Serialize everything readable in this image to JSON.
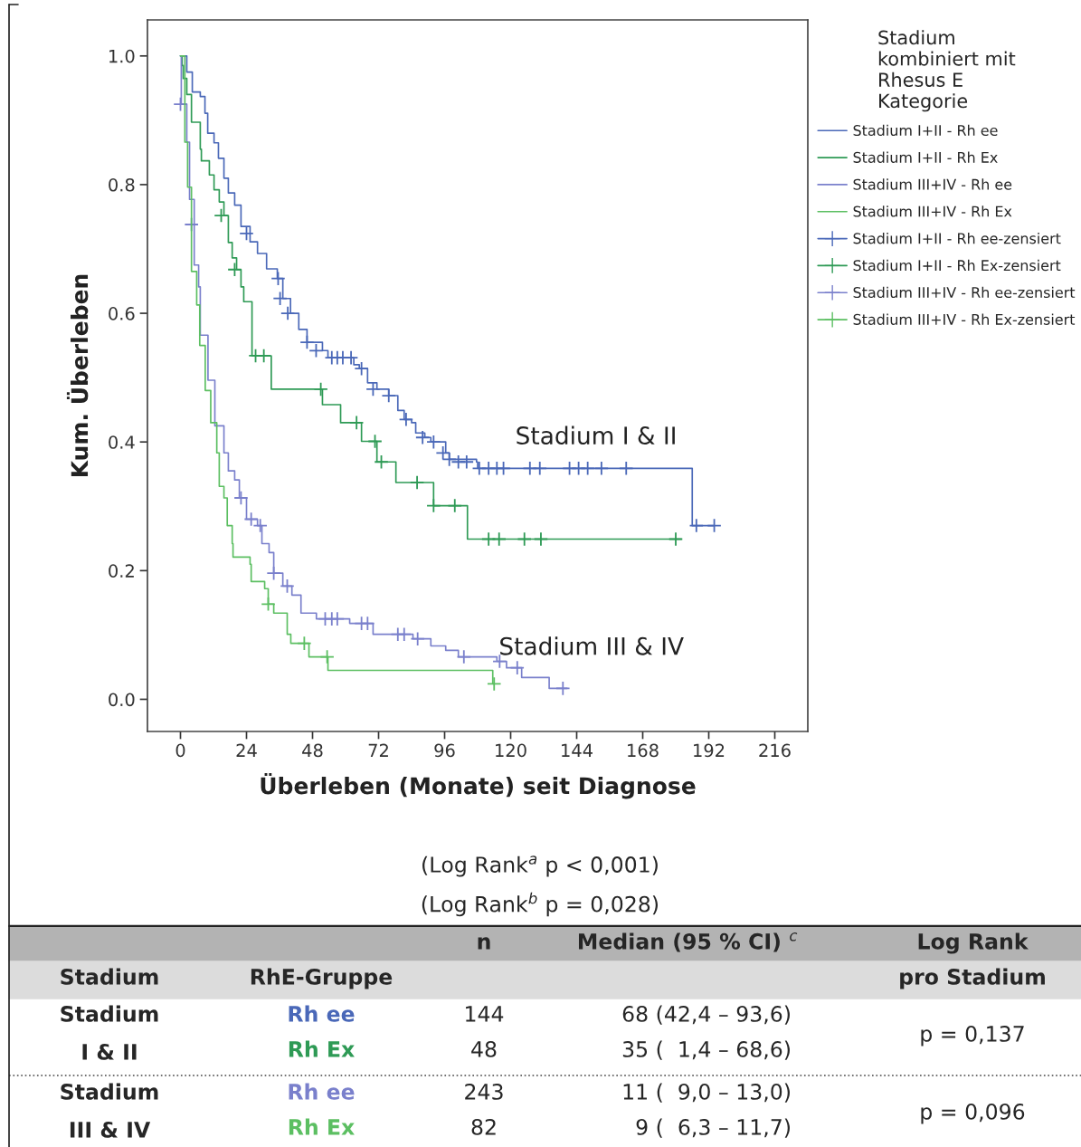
{
  "chart_data": {
    "type": "step",
    "xlabel": "Überleben (Monate) seit Diagnose",
    "ylabel": "Kum. Überleben",
    "legend_title": "Stadium\nkombiniert mit\nRhesus E\nKategorie",
    "legend": "top right",
    "xlim": [
      -12,
      228
    ],
    "xticks": [
      0,
      24,
      48,
      72,
      96,
      120,
      144,
      168,
      192,
      216
    ],
    "ylim": [
      -0.05,
      1.056
    ],
    "yticks": [
      {
        "value": 0,
        "label": "0.0"
      },
      {
        "value": 0.2,
        "label": "0.2"
      },
      {
        "value": 0.4,
        "label": "0.4"
      },
      {
        "value": 0.6,
        "label": "0.6"
      },
      {
        "value": 0.8,
        "label": "0.8"
      },
      {
        "value": 1,
        "label": "1.0"
      }
    ],
    "grid": false,
    "series": [
      {
        "name": "Stadium I+II - Rh ee",
        "color": "#4a68b8",
        "x": [
          0,
          2.3,
          4.3,
          7.2,
          8.9,
          9.9,
          12.2,
          13.8,
          15.8,
          17.4,
          19.7,
          22,
          25.3,
          28,
          31.3,
          35.2,
          37.2,
          40,
          43,
          46,
          51.6,
          53.6,
          63,
          65,
          68,
          71.4,
          75.7,
          79,
          81.3,
          84,
          85.5,
          88.8,
          91,
          96.4,
          97.7,
          107.6,
          108,
          186,
          194
        ],
        "values": [
          1.0,
          0.975,
          0.944,
          0.937,
          0.911,
          0.88,
          0.865,
          0.841,
          0.81,
          0.787,
          0.768,
          0.735,
          0.711,
          0.693,
          0.669,
          0.654,
          0.623,
          0.6,
          0.575,
          0.555,
          0.542,
          0.531,
          0.52,
          0.514,
          0.492,
          0.482,
          0.472,
          0.449,
          0.435,
          0.43,
          0.414,
          0.407,
          0.4,
          0.383,
          0.373,
          0.369,
          0.359,
          0.27,
          0.27
        ]
      },
      {
        "name": "Stadium I+II - Rh Ex",
        "color": "#2e9a55",
        "x": [
          0,
          0.6,
          1,
          2.3,
          4,
          7.2,
          7.6,
          10.5,
          12.2,
          14.1,
          15.8,
          17.4,
          18.8,
          20.4,
          22,
          23,
          26,
          33,
          51.6,
          58.2,
          65.8,
          71.4,
          78.3,
          92,
          104.3,
          182
        ],
        "values": [
          1.0,
          0.985,
          0.965,
          0.94,
          0.897,
          0.855,
          0.837,
          0.815,
          0.792,
          0.773,
          0.752,
          0.71,
          0.686,
          0.668,
          0.641,
          0.618,
          0.534,
          0.482,
          0.458,
          0.43,
          0.401,
          0.369,
          0.337,
          0.301,
          0.249,
          0.249
        ]
      },
      {
        "name": "Stadium III+IV - Rh ee",
        "color": "#7a80cc",
        "x": [
          0,
          0.3,
          2.3,
          3.3,
          5,
          6.6,
          7.2,
          10,
          12.5,
          15.8,
          17.4,
          19.7,
          21.4,
          24,
          28,
          29.6,
          32.2,
          33.9,
          37.2,
          40.5,
          43.8,
          49.4,
          61.5,
          70,
          84.5,
          91,
          96.4,
          101,
          115,
          118.5,
          124,
          134,
          140.5
        ],
        "values": [
          1.0,
          0.925,
          0.866,
          0.777,
          0.675,
          0.641,
          0.566,
          0.496,
          0.425,
          0.383,
          0.355,
          0.341,
          0.313,
          0.28,
          0.27,
          0.242,
          0.228,
          0.196,
          0.176,
          0.162,
          0.134,
          0.125,
          0.118,
          0.101,
          0.094,
          0.083,
          0.076,
          0.066,
          0.059,
          0.049,
          0.034,
          0.017,
          0.017
        ]
      },
      {
        "name": "Stadium III+IV - Rh Ex",
        "color": "#5cbf62",
        "x": [
          0,
          1.6,
          2.6,
          4,
          5.9,
          7,
          9,
          11,
          13.2,
          14.1,
          15.8,
          17,
          18.8,
          19.1,
          25.3,
          25.7,
          30.6,
          31.9,
          33.9,
          38.8,
          40.1,
          46.7,
          53.6,
          113.5,
          114
        ],
        "values": [
          1.0,
          0.866,
          0.796,
          0.665,
          0.613,
          0.55,
          0.48,
          0.43,
          0.383,
          0.331,
          0.313,
          0.27,
          0.242,
          0.221,
          0.21,
          0.183,
          0.172,
          0.148,
          0.134,
          0.101,
          0.087,
          0.066,
          0.045,
          0.024,
          0.024
        ]
      },
      {
        "name": "Stadium I+II - Rh ee-zensiert",
        "type": "scatter",
        "marker": "cross",
        "color": "#4a68b8",
        "x": [
          24,
          35.5,
          36.2,
          39,
          46,
          49.3,
          55,
          57,
          59,
          62,
          65.8,
          70,
          75.7,
          82,
          88,
          92,
          95.4,
          97.7,
          101,
          104,
          108.6,
          112,
          115,
          117.4,
          127,
          130.6,
          141.4,
          144.7,
          148,
          153,
          162,
          187.5,
          194
        ],
        "values": [
          0.724,
          0.654,
          0.623,
          0.6,
          0.555,
          0.542,
          0.531,
          0.531,
          0.531,
          0.531,
          0.514,
          0.482,
          0.472,
          0.435,
          0.407,
          0.4,
          0.383,
          0.373,
          0.369,
          0.369,
          0.359,
          0.359,
          0.359,
          0.359,
          0.359,
          0.359,
          0.359,
          0.359,
          0.359,
          0.359,
          0.359,
          0.27,
          0.27
        ]
      },
      {
        "name": "Stadium I+II - Rh Ex-zensiert",
        "type": "scatter",
        "marker": "cross",
        "color": "#2e9a55",
        "x": [
          14.8,
          19.7,
          27.3,
          30.3,
          51,
          64,
          70.7,
          73,
          86,
          92,
          99.7,
          112,
          115.8,
          125,
          131,
          180
        ],
        "values": [
          0.752,
          0.668,
          0.534,
          0.534,
          0.482,
          0.43,
          0.401,
          0.369,
          0.337,
          0.301,
          0.301,
          0.249,
          0.249,
          0.249,
          0.249,
          0.249
        ]
      },
      {
        "name": "Stadium III+IV - Rh ee-zensiert",
        "type": "scatter",
        "marker": "cross",
        "color": "#7a80cc",
        "x": [
          0,
          4,
          22,
          25.7,
          29,
          33.9,
          38.8,
          52.6,
          55,
          57,
          65.8,
          68,
          79,
          81.3,
          86.2,
          103,
          116,
          122.4,
          139
        ],
        "values": [
          0.925,
          0.738,
          0.313,
          0.28,
          0.27,
          0.196,
          0.176,
          0.125,
          0.125,
          0.125,
          0.118,
          0.118,
          0.101,
          0.101,
          0.094,
          0.066,
          0.059,
          0.049,
          0.017
        ]
      },
      {
        "name": "Stadium III+IV - Rh Ex-zensiert",
        "type": "scatter",
        "marker": "cross",
        "color": "#5cbf62",
        "x": [
          31.9,
          45,
          53.3,
          114
        ],
        "values": [
          0.148,
          0.087,
          0.066,
          0.024
        ]
      }
    ],
    "annotations": [
      "Stadium I & II",
      "Stadium III & IV",
      "(Log Rank$^{a}$ p < 0,001)",
      "(Log Rank$^{b}$ p = 0,028)",
      "n",
      "Median (95 % CI) $^{c}$",
      "Log Rank",
      "Stadium",
      "RhE-Gruppe",
      "pro Stadium",
      "Stadium",
      "I & II",
      "Rh ee",
      "Rh Ex",
      "144",
      "48",
      "68 (42,4 – 93,6)",
      "35 (  1,4 – 68,6)",
      "p = 0,137",
      "Stadium",
      "III & IV",
      "Rh ee",
      "Rh Ex",
      "243",
      "82",
      "11 (  9,0 – 13,0)",
      "9 (  6,3 – 11,7)",
      "p = 0,096"
    ]
  }
}
